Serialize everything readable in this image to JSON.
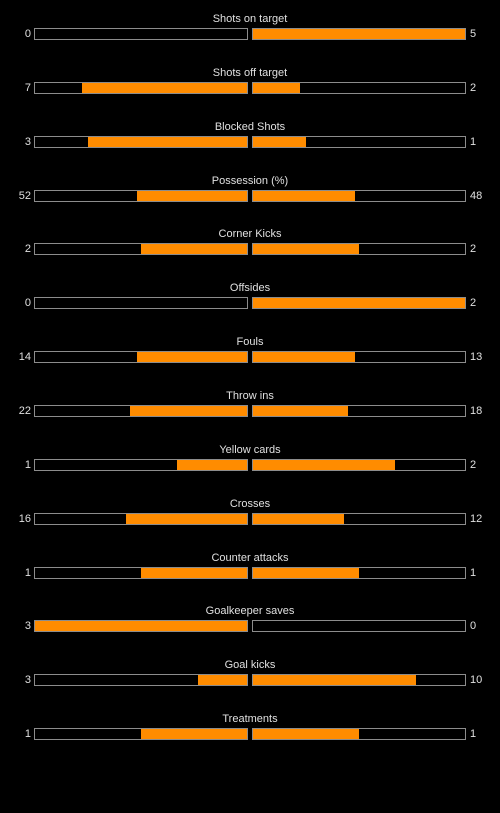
{
  "colors": {
    "background": "#000000",
    "bar_fill": "#ff8c00",
    "bar_border": "#8c8c8c",
    "text": "#e0e0e0"
  },
  "stats": [
    {
      "label": "Shots on target",
      "home": "0",
      "away": "5",
      "home_fill": 0,
      "away_fill": 1
    },
    {
      "label": "Shots off target",
      "home": "7",
      "away": "2",
      "home_fill": 0.78,
      "away_fill": 0.22
    },
    {
      "label": "Blocked Shots",
      "home": "3",
      "away": "1",
      "home_fill": 0.75,
      "away_fill": 0.25
    },
    {
      "label": "Possession (%)",
      "home": "52",
      "away": "48",
      "home_fill": 0.52,
      "away_fill": 0.48
    },
    {
      "label": "Corner Kicks",
      "home": "2",
      "away": "2",
      "home_fill": 0.5,
      "away_fill": 0.5
    },
    {
      "label": "Offsides",
      "home": "0",
      "away": "2",
      "home_fill": 0,
      "away_fill": 1
    },
    {
      "label": "Fouls",
      "home": "14",
      "away": "13",
      "home_fill": 0.52,
      "away_fill": 0.48
    },
    {
      "label": "Throw ins",
      "home": "22",
      "away": "18",
      "home_fill": 0.55,
      "away_fill": 0.45
    },
    {
      "label": "Yellow cards",
      "home": "1",
      "away": "2",
      "home_fill": 0.33,
      "away_fill": 0.67
    },
    {
      "label": "Crosses",
      "home": "16",
      "away": "12",
      "home_fill": 0.57,
      "away_fill": 0.43
    },
    {
      "label": "Counter attacks",
      "home": "1",
      "away": "1",
      "home_fill": 0.5,
      "away_fill": 0.5
    },
    {
      "label": "Goalkeeper saves",
      "home": "3",
      "away": "0",
      "home_fill": 1,
      "away_fill": 0
    },
    {
      "label": "Goal kicks",
      "home": "3",
      "away": "10",
      "home_fill": 0.23,
      "away_fill": 0.77
    },
    {
      "label": "Treatments",
      "home": "1",
      "away": "1",
      "home_fill": 0.5,
      "away_fill": 0.5
    }
  ]
}
